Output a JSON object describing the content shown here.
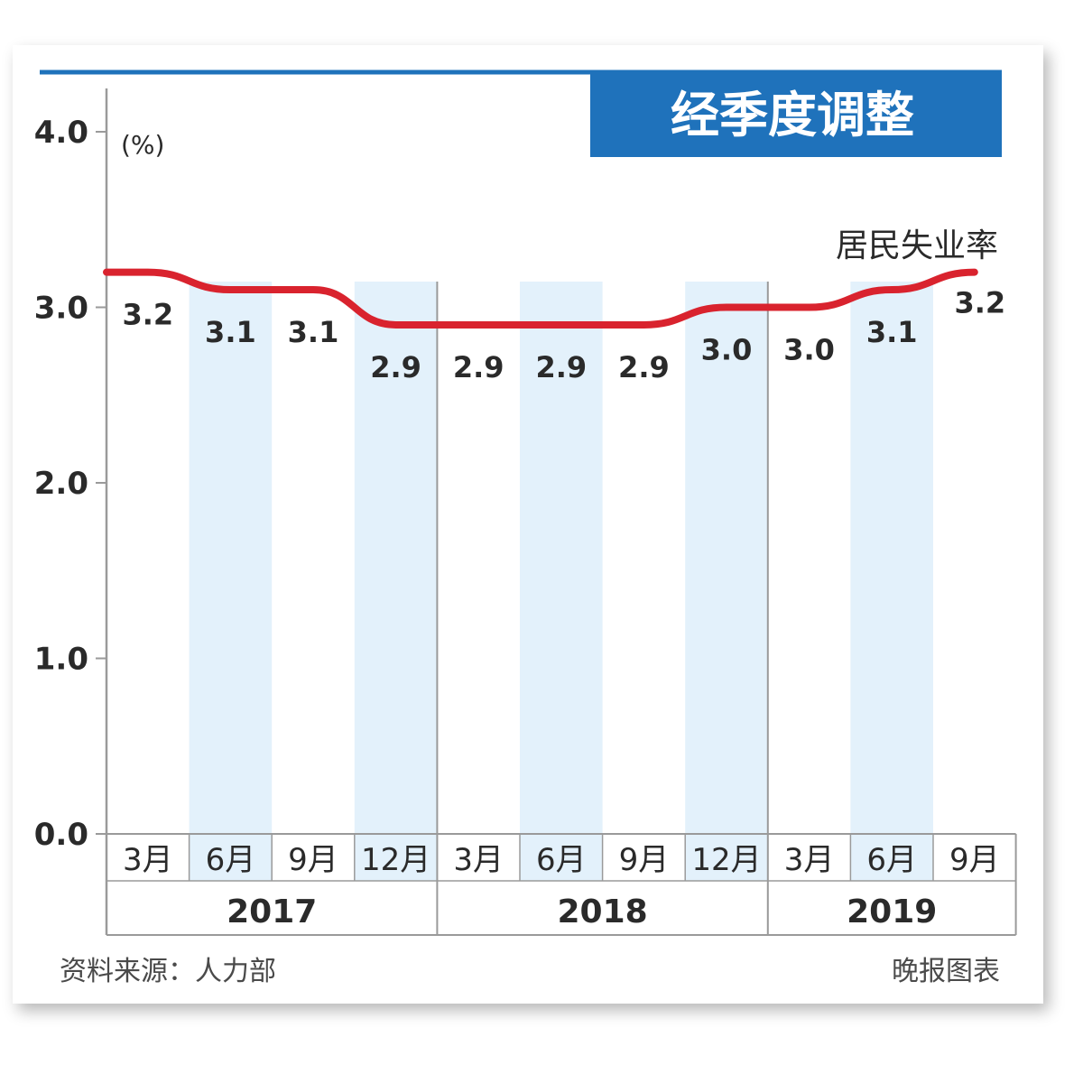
{
  "title": "经季度调整",
  "source": "资料来源：人力部",
  "credit": "晚报图表",
  "colors": {
    "line": "#d9232e",
    "title_bg": "#1f72bb",
    "shade": "#e3f1fb",
    "rule": "#1f72bb",
    "axis": "#9a9a9a"
  },
  "chart_data": {
    "type": "line",
    "unit": "(%)",
    "series": [
      {
        "name": "居民失业率",
        "values": [
          3.2,
          3.1,
          3.1,
          2.9,
          2.9,
          2.9,
          2.9,
          3.0,
          3.0,
          3.1,
          3.2
        ],
        "labels": [
          "3.2",
          "3.1",
          "3.1",
          "2.9",
          "2.9",
          "2.9",
          "2.9",
          "3.0",
          "3.0",
          "3.1",
          "3.2"
        ]
      }
    ],
    "categories": [
      "3月",
      "6月",
      "9月",
      "12月",
      "3月",
      "6月",
      "9月",
      "12月",
      "3月",
      "6月",
      "9月"
    ],
    "years": [
      {
        "label": "2017",
        "count": 4
      },
      {
        "label": "2018",
        "count": 4
      },
      {
        "label": "2019",
        "count": 3
      }
    ],
    "ylim": [
      0,
      4
    ],
    "yticks": [
      "0.0",
      "1.0",
      "2.0",
      "3.0",
      "4.0"
    ],
    "shaded_columns": [
      1,
      3,
      5,
      7,
      9
    ]
  }
}
